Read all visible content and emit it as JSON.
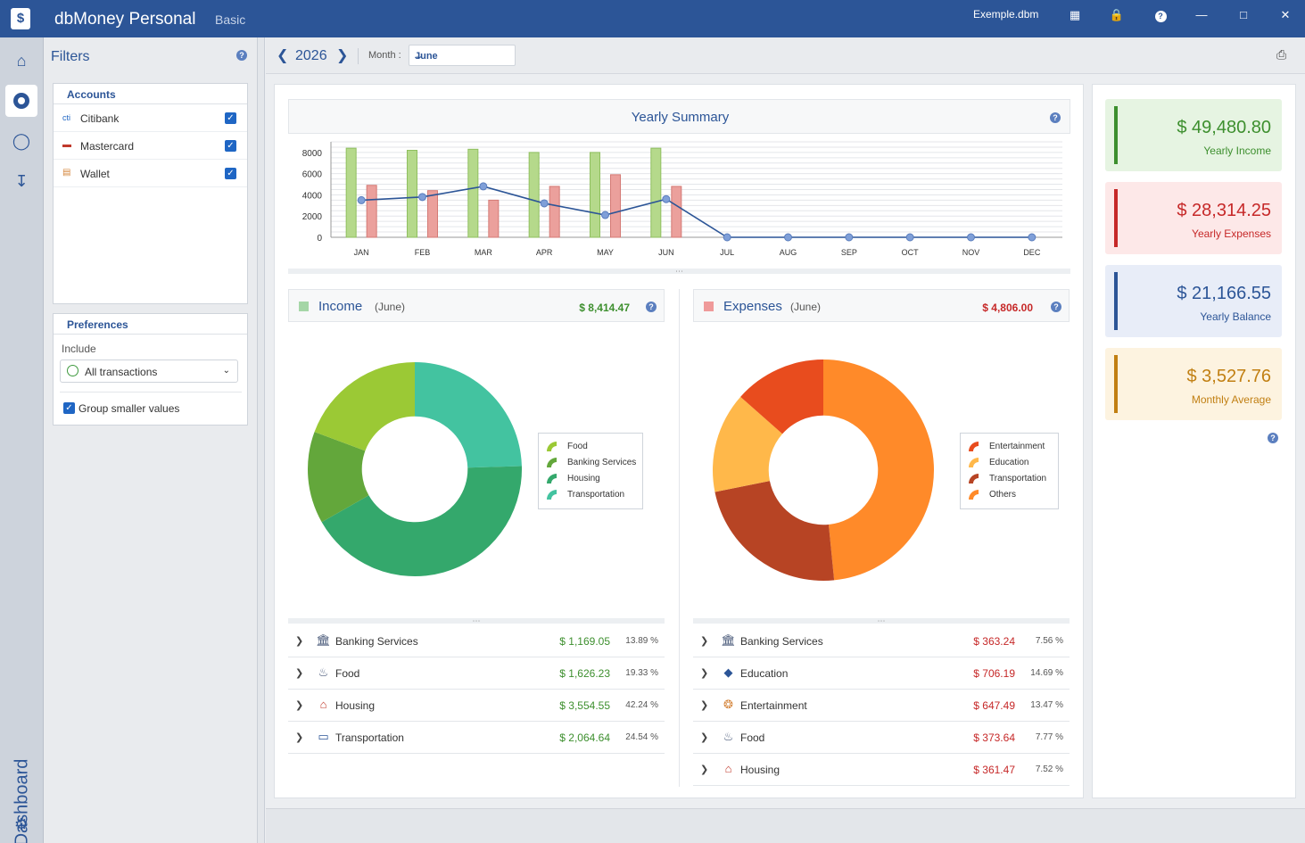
{
  "app": {
    "title": "dbMoney Personal",
    "edition": "Basic",
    "file": "Exemple.dbm",
    "colors": {
      "brand": "#2c5597",
      "income": "#3d8f2e",
      "expense": "#c62828"
    }
  },
  "rail": {
    "label": "Dashboard"
  },
  "filters": {
    "title": "Filters",
    "accounts_title": "Accounts",
    "accounts": [
      {
        "label": "Citibank",
        "icon": "bank-card-icon",
        "checked": true
      },
      {
        "label": "Mastercard",
        "icon": "credit-card-icon",
        "checked": true
      },
      {
        "label": "Wallet",
        "icon": "wallet-icon",
        "checked": true
      }
    ],
    "preferences_title": "Preferences",
    "include_label": "Include",
    "include_value": "All transactions",
    "group_label": "Group smaller values",
    "group_checked": true
  },
  "toolbar": {
    "year": "2026",
    "month_label": "Month :",
    "month_value": "June"
  },
  "yearly": {
    "title": "Yearly Summary",
    "chart_data": {
      "type": "bar",
      "categories": [
        "JAN",
        "FEB",
        "MAR",
        "APR",
        "MAY",
        "JUN",
        "JUL",
        "AUG",
        "SEP",
        "OCT",
        "NOV",
        "DEC"
      ],
      "series": [
        {
          "values": [
            8400,
            8200,
            8300,
            8000,
            8000,
            8400,
            0,
            0,
            0,
            0,
            0,
            0
          ],
          "color": "#b5d98b"
        },
        {
          "values": [
            4900,
            4400,
            3500,
            4800,
            5900,
            4800,
            0,
            0,
            0,
            0,
            0,
            0
          ],
          "color": "#eba09c"
        },
        {
          "type": "line",
          "values": [
            3500,
            3800,
            4800,
            3200,
            2100,
            3600,
            0,
            0,
            0,
            0,
            0,
            0
          ],
          "color": "#2c5597"
        }
      ],
      "yticks": [
        "0",
        "2000",
        "4000",
        "6000",
        "8000"
      ],
      "ylim": [
        0,
        9000
      ],
      "grid": true
    }
  },
  "income": {
    "title": "Income",
    "period": "(June)",
    "total": "$ 8,414.47",
    "swatch": "#a5d6a7",
    "chart_data": {
      "type": "pie",
      "categories": [
        "Food",
        "Banking Services",
        "Housing",
        "Transportation"
      ],
      "values": [
        19.33,
        13.89,
        42.24,
        24.54
      ],
      "colors": [
        "#9bc935",
        "#63a73b",
        "#34a86c",
        "#43c3a0"
      ]
    },
    "legend": [
      "Food",
      "Banking Services",
      "Housing",
      "Transportation"
    ],
    "rows": [
      {
        "name": "Banking Services",
        "icon": "bank-icon",
        "amount": "$ 1,169.05",
        "pct": "13.89 %"
      },
      {
        "name": "Food",
        "icon": "cutlery-icon",
        "amount": "$ 1,626.23",
        "pct": "19.33 %"
      },
      {
        "name": "Housing",
        "icon": "house-icon",
        "amount": "$ 3,554.55",
        "pct": "42.24 %"
      },
      {
        "name": "Transportation",
        "icon": "car-icon",
        "amount": "$ 2,064.64",
        "pct": "24.54 %"
      }
    ]
  },
  "expenses": {
    "title": "Expenses",
    "period": "(June)",
    "total": "$ 4,806.00",
    "swatch": "#ef9a9a",
    "chart_data": {
      "type": "pie",
      "categories": [
        "Entertainment",
        "Education",
        "Transportation",
        "Others"
      ],
      "values": [
        13.47,
        14.69,
        23.4,
        48.44
      ],
      "colors": [
        "#e84c1e",
        "#ffb84a",
        "#b74424",
        "#ff8a29"
      ]
    },
    "legend": [
      "Entertainment",
      "Education",
      "Transportation",
      "Others"
    ],
    "rows": [
      {
        "name": "Banking Services",
        "icon": "bank-icon",
        "amount": "$ 363.24",
        "pct": "7.56 %"
      },
      {
        "name": "Education",
        "icon": "graduation-cap-icon",
        "amount": "$ 706.19",
        "pct": "14.69 %"
      },
      {
        "name": "Entertainment",
        "icon": "award-icon",
        "amount": "$ 647.49",
        "pct": "13.47 %"
      },
      {
        "name": "Food",
        "icon": "cutlery-icon",
        "amount": "$ 373.64",
        "pct": "7.77 %"
      },
      {
        "name": "Housing",
        "icon": "house-icon",
        "amount": "$ 361.47",
        "pct": "7.52 %"
      }
    ]
  },
  "summary": [
    {
      "value": "$ 49,480.80",
      "caption": "Yearly Income",
      "color": "#3d8f2e",
      "bar": "#3d8f2e",
      "bg": "#e6f4e2"
    },
    {
      "value": "$ 28,314.25",
      "caption": "Yearly Expenses",
      "color": "#c62828",
      "bar": "#c62828",
      "bg": "#fde8e8"
    },
    {
      "value": "$ 21,166.55",
      "caption": "Yearly Balance",
      "color": "#2c5597",
      "bar": "#2c5597",
      "bg": "#e8edf8"
    },
    {
      "value": "$ 3,527.76",
      "caption": "Monthly Average",
      "color": "#c17f12",
      "bar": "#c17f12",
      "bg": "#fdf3e0"
    }
  ]
}
